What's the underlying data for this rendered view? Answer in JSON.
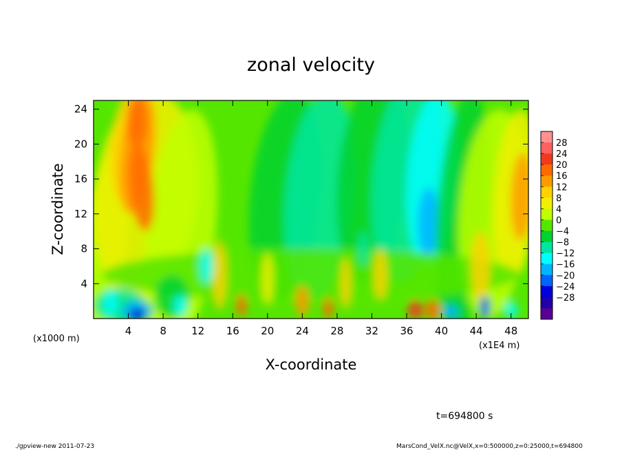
{
  "chart_data": {
    "type": "heatmap",
    "title": "zonal velocity",
    "xlabel": "X-coordinate",
    "ylabel": "Z-coordinate",
    "x_unit_left": "(x1000 m)",
    "x_unit_right": "(x1E4 m)",
    "x_ticks": [
      "4",
      "8",
      "12",
      "16",
      "20",
      "24",
      "28",
      "32",
      "36",
      "40",
      "44",
      "48"
    ],
    "y_ticks": [
      "4",
      "8",
      "12",
      "16",
      "20",
      "24"
    ],
    "xlim": [
      0,
      50
    ],
    "ylim": [
      0,
      25
    ],
    "x_tick_values": [
      4,
      8,
      12,
      16,
      20,
      24,
      28,
      32,
      36,
      40,
      44,
      48
    ],
    "y_tick_values": [
      4,
      8,
      12,
      16,
      20,
      24
    ],
    "colorbar": {
      "labels": [
        "28",
        "24",
        "20",
        "16",
        "12",
        "8",
        "4",
        "0",
        "−4",
        "−8",
        "−12",
        "−16",
        "−20",
        "−24",
        "−28"
      ],
      "colors": [
        "#ff9090",
        "#ff6060",
        "#f03a1e",
        "#ff6a00",
        "#ff9a00",
        "#ffd200",
        "#f0f000",
        "#bfff00",
        "#55e600",
        "#00d230",
        "#00e6a0",
        "#00ffff",
        "#00b4ff",
        "#0064ff",
        "#0000dc",
        "#2000a8",
        "#5a0096"
      ]
    },
    "time_label": "t=694800 s",
    "footer_left": "./gpview-new  2011-07-23",
    "footer_right": "MarsCond_VelX.nc@VelX,x=0:500000,z=0:25000,t=694800"
  }
}
